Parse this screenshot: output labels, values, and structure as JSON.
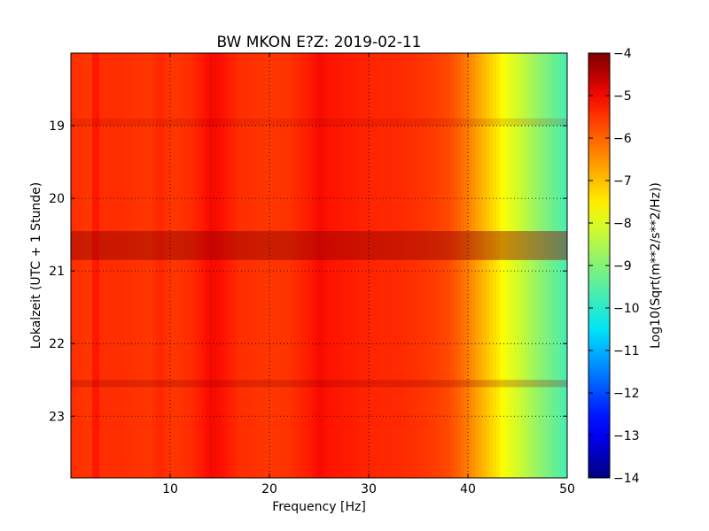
{
  "chart_data": {
    "type": "heatmap",
    "title": "BW MKON E?Z: 2019-02-11",
    "xlabel": "Frequency [Hz]",
    "ylabel": "Lokalzeit (UTC + 1 Stunde)",
    "xlim": [
      0,
      50
    ],
    "ylim": [
      18,
      23.85
    ],
    "y_inverted": true,
    "grid": true,
    "x_ticks": [
      10,
      20,
      30,
      40,
      50
    ],
    "x_tick_labels": [
      "10",
      "20",
      "30",
      "40",
      "50"
    ],
    "y_ticks": [
      19,
      20,
      21,
      22,
      23
    ],
    "y_tick_labels": [
      "19",
      "20",
      "21",
      "22",
      "23"
    ],
    "colormap": "jet",
    "colorbar": {
      "label": "Log10(Sqrt(m**2/s**2/Hz))",
      "min": -14,
      "max": -4,
      "ticks": [
        -4,
        -5,
        -6,
        -7,
        -8,
        -9,
        -10,
        -11,
        -12,
        -13,
        -14
      ],
      "tick_labels": [
        "−4",
        "−5",
        "−6",
        "−7",
        "−8",
        "−9",
        "−10",
        "−11",
        "−12",
        "−13",
        "−14"
      ]
    },
    "spectrum_profile": {
      "frequency_hz": [
        0,
        2,
        2.5,
        3,
        5,
        8,
        9,
        10,
        12,
        14,
        15,
        17,
        20,
        22,
        24,
        25,
        26,
        28,
        30,
        33,
        35,
        36,
        37,
        38,
        39,
        40,
        41,
        42,
        43,
        44,
        45,
        46,
        47,
        48,
        49,
        50
      ],
      "level_log10": [
        -5.4,
        -5.5,
        -5.0,
        -5.4,
        -5.4,
        -5.5,
        -5.3,
        -5.5,
        -5.4,
        -5.0,
        -5.05,
        -5.4,
        -5.5,
        -5.45,
        -5.2,
        -5.0,
        -5.1,
        -5.2,
        -5.3,
        -5.35,
        -5.45,
        -5.5,
        -5.6,
        -5.7,
        -5.95,
        -6.3,
        -6.7,
        -7.1,
        -7.45,
        -7.8,
        -8.1,
        -8.45,
        -8.8,
        -9.1,
        -9.4,
        -9.7
      ]
    },
    "time_features": [
      {
        "start_hour": 20.45,
        "end_hour": 20.85,
        "level_shift": 0.45
      },
      {
        "start_hour": 22.5,
        "end_hour": 22.6,
        "level_shift": 0.25
      },
      {
        "start_hour": 18.9,
        "end_hour": 19.0,
        "level_shift": 0.15
      }
    ]
  }
}
